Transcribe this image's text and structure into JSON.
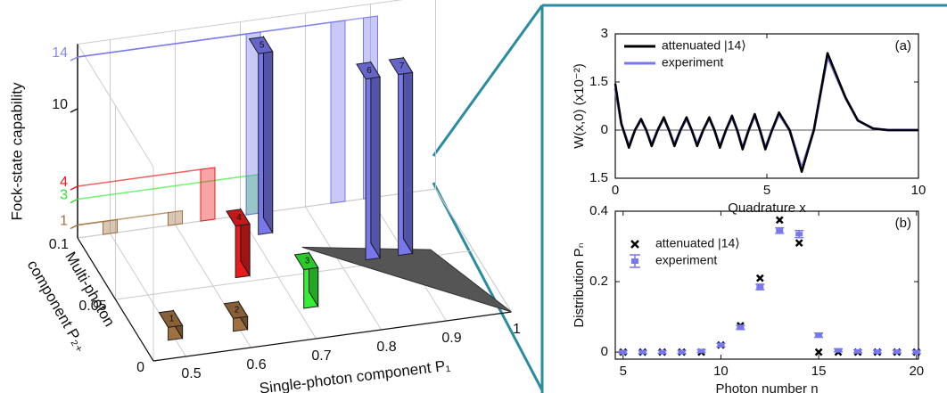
{
  "chart_data": [
    {
      "type": "bar3d",
      "zlabel": "Fock-state capability",
      "ylabel": [
        "Multi-photon",
        "component P₂₊"
      ],
      "xlabel": "Single-photon component P₁",
      "xlim": [
        0.45,
        1.0
      ],
      "ylim": [
        0,
        0.1
      ],
      "zlim": [
        0,
        15
      ],
      "xticks": [
        0.5,
        0.6,
        0.7,
        0.8,
        0.9,
        1
      ],
      "yticks": [
        0,
        0.05,
        0.1
      ],
      "zticks": [
        1,
        3,
        4,
        10,
        14
      ],
      "ztick_colors": [
        "#a0703f",
        "#33dd33",
        "#e81c1c",
        "#111111",
        "#8888ee"
      ],
      "bars": [
        {
          "label": "1",
          "x": 0.5,
          "y": 0.02,
          "z": 1,
          "color": "#a0703f"
        },
        {
          "label": "2",
          "x": 0.6,
          "y": 0.02,
          "z": 1,
          "color": "#a0703f"
        },
        {
          "label": "3",
          "x": 0.72,
          "y": 0.03,
          "z": 3,
          "color": "#33ee33"
        },
        {
          "label": "4",
          "x": 0.65,
          "y": 0.06,
          "z": 4,
          "color": "#e81c1c"
        },
        {
          "label": "5",
          "x": 0.72,
          "y": 0.09,
          "z": 14,
          "color": "#7777ee"
        },
        {
          "label": "6",
          "x": 0.85,
          "y": 0.06,
          "z": 14,
          "color": "#7777ee"
        },
        {
          "label": "7",
          "x": 0.9,
          "y": 0.06,
          "z": 14,
          "color": "#7777ee"
        }
      ]
    },
    {
      "type": "line",
      "panel": "(a)",
      "xlabel": "Quadrature x",
      "ylabel": "W(x,0) (x10⁻²)",
      "xlim": [
        0,
        10
      ],
      "ylim": [
        -1.5,
        3
      ],
      "xticks": [
        0,
        5,
        10
      ],
      "yticks": [
        3,
        1.5,
        0,
        {
          "value": -1.5,
          "label": "1.5"
        }
      ],
      "x": [
        0,
        0.2,
        0.45,
        0.65,
        0.85,
        1.02,
        1.2,
        1.4,
        1.6,
        1.77,
        1.95,
        2.15,
        2.35,
        2.52,
        2.7,
        2.9,
        3.1,
        3.27,
        3.45,
        3.65,
        3.85,
        4.02,
        4.2,
        4.4,
        4.6,
        4.77,
        4.95,
        5.17,
        5.4,
        5.75,
        6.15,
        6.55,
        7.0,
        7.6,
        8.0,
        8.5,
        9,
        10
      ],
      "series": [
        {
          "name": "attenuated |14⟩",
          "color": "#000000",
          "values": [
            1.45,
            0.2,
            -0.55,
            0,
            0.35,
            0,
            -0.5,
            0,
            0.4,
            0,
            -0.5,
            0,
            0.4,
            0,
            -0.5,
            0,
            0.4,
            0,
            -0.55,
            0,
            0.45,
            0,
            -0.6,
            0,
            0.5,
            0,
            -0.6,
            0,
            0.55,
            0,
            -1.3,
            0,
            2.4,
            1.0,
            0.3,
            0.05,
            0,
            0
          ]
        },
        {
          "name": "experiment",
          "color": "#7777ee",
          "values": [
            1.3,
            0.2,
            -0.5,
            0,
            0.32,
            0,
            -0.45,
            0,
            0.36,
            0,
            -0.45,
            0,
            0.36,
            0,
            -0.45,
            0,
            0.36,
            0,
            -0.5,
            0,
            0.4,
            0,
            -0.55,
            0,
            0.45,
            0,
            -0.55,
            0,
            0.5,
            0,
            -1.2,
            0,
            2.3,
            1.0,
            0.3,
            0.05,
            0,
            0
          ]
        }
      ]
    },
    {
      "type": "errorbar",
      "panel": "(b)",
      "xlabel": "Photon number n",
      "ylabel": "Distribution Pₙ",
      "xlim": [
        4.6,
        20.1
      ],
      "ylim": [
        -0.02,
        0.4
      ],
      "xticks": [
        5,
        10,
        15,
        20
      ],
      "yticks": [
        0,
        0.2,
        0.4
      ],
      "x": [
        5,
        6,
        7,
        8,
        9,
        10,
        11,
        12,
        13,
        14,
        15,
        16,
        17,
        18,
        19,
        20
      ],
      "series": [
        {
          "name": "attenuated |14⟩",
          "color": "#000000",
          "marker": "x",
          "values": [
            0,
            0,
            0,
            0,
            0,
            0.02,
            0.075,
            0.21,
            0.375,
            0.31,
            0,
            0,
            0,
            0,
            0,
            0
          ]
        },
        {
          "name": "experiment",
          "color": "#7777ee",
          "marker": "bar",
          "values": [
            0,
            0,
            0,
            0,
            0.003,
            0.02,
            0.07,
            0.185,
            0.345,
            0.335,
            0.048,
            0.005,
            0.002,
            0.001,
            0.001,
            0
          ],
          "errors": [
            0.004,
            0.004,
            0.004,
            0.004,
            0.004,
            0.005,
            0.006,
            0.008,
            0.008,
            0.01,
            0.006,
            0.004,
            0.004,
            0.004,
            0.004,
            0.004
          ]
        }
      ]
    }
  ]
}
